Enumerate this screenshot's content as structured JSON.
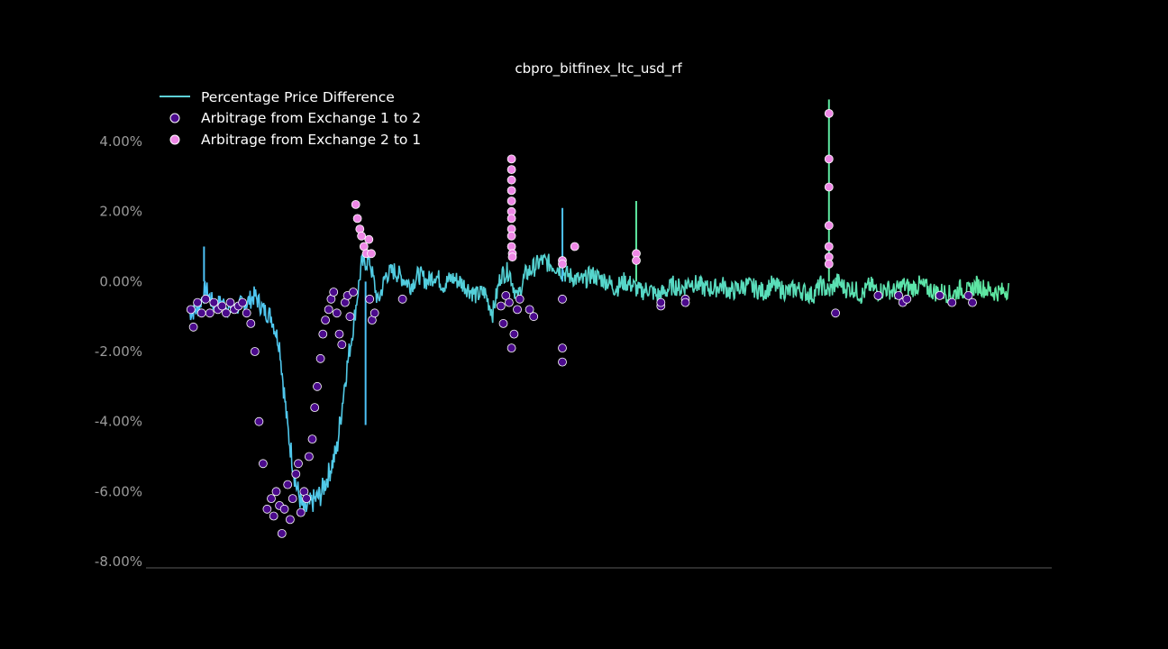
{
  "chart_data": {
    "type": "line",
    "title": "cbpro_bitfinex_ltc_usd_rf",
    "xlabel": "",
    "ylabel": "",
    "ylim": [
      -8.2,
      5.0
    ],
    "xlim": [
      0,
      100
    ],
    "y_ticks": [
      4,
      2,
      0,
      -2,
      -4,
      -6,
      -8
    ],
    "y_tick_labels": [
      "4.00%",
      "2.00%",
      "0.00%",
      "-2.00%",
      "-4.00%",
      "-6.00%",
      "-8.00%"
    ],
    "grid": false,
    "legend_position": "top-left",
    "legend": [
      {
        "label": "Percentage Price Difference",
        "kind": "line"
      },
      {
        "label": "Arbitrage from Exchange 1 to 2",
        "kind": "marker"
      },
      {
        "label": "Arbitrage from Exchange 2 to 1",
        "kind": "marker"
      }
    ],
    "line_series": {
      "name": "Percentage Price Difference",
      "color_start": "#4ec3f7",
      "color_end": "#5ee8a0",
      "x": [
        0,
        1,
        2,
        3,
        4,
        5,
        6,
        7,
        8,
        9,
        10,
        11,
        12,
        13,
        14,
        15,
        16,
        17,
        18,
        19,
        20,
        21,
        22,
        23,
        24,
        25,
        26,
        27,
        28,
        29,
        30,
        31,
        32,
        33,
        34,
        35,
        36,
        37,
        38,
        39,
        40,
        41,
        42,
        43,
        44,
        45,
        46,
        47,
        48,
        49,
        50,
        51,
        52,
        53,
        54,
        55,
        56,
        57,
        58,
        59,
        60,
        61,
        62,
        63,
        64,
        65,
        66,
        67,
        68,
        69,
        70,
        71,
        72,
        73,
        74,
        75,
        76,
        77,
        78,
        79,
        80,
        81,
        82,
        83,
        84,
        85,
        86,
        87,
        88,
        89,
        90,
        91,
        92,
        93,
        94,
        95,
        96,
        97,
        98,
        99,
        100
      ],
      "y": [
        -0.9,
        -0.8,
        -0.2,
        -0.7,
        -0.6,
        -0.8,
        -0.7,
        -0.6,
        -0.4,
        -0.8,
        -1.0,
        -1.8,
        -4.2,
        -5.8,
        -6.6,
        -6.3,
        -6.1,
        -5.5,
        -4.8,
        -2.8,
        -1.3,
        0.5,
        0.6,
        -0.6,
        0.2,
        0.3,
        0.1,
        -0.1,
        0.2,
        0.0,
        0.2,
        -0.1,
        0.1,
        0.0,
        -0.2,
        -0.4,
        -0.3,
        -0.9,
        0.2,
        0.3,
        -0.5,
        0.2,
        0.4,
        0.6,
        0.5,
        0.4,
        0.2,
        0.1,
        0.0,
        0.2,
        0.1,
        0.0,
        -0.2,
        0.0,
        -0.1,
        -0.3,
        -0.2,
        -0.4,
        -0.3,
        -0.1,
        -0.2,
        0.0,
        -0.1,
        -0.2,
        -0.2,
        -0.1,
        -0.3,
        -0.2,
        -0.1,
        -0.2,
        -0.3,
        -0.1,
        -0.2,
        -0.3,
        -0.2,
        -0.3,
        -0.4,
        -0.1,
        -0.3,
        0.0,
        -0.2,
        -0.2,
        -0.4,
        -0.1,
        -0.3,
        -0.2,
        -0.3,
        -0.1,
        -0.2,
        -0.1,
        -0.2,
        -0.3,
        -0.3,
        -0.4,
        -0.2,
        -0.3,
        -0.1,
        -0.2,
        -0.3,
        -0.3,
        -0.2
      ],
      "spikes": [
        {
          "x": 1.8,
          "y": 1.0
        },
        {
          "x": 21.5,
          "y": -4.1
        },
        {
          "x": 45.5,
          "y": 2.1
        },
        {
          "x": 54.5,
          "y": 2.3
        },
        {
          "x": 78.0,
          "y": 5.2
        }
      ]
    },
    "scatter_series": [
      {
        "name": "Arbitrage from Exchange 1 to 2",
        "color": "#4b0a8c",
        "x": [
          0.2,
          0.5,
          1,
          1.5,
          2,
          2.5,
          3,
          3.5,
          4,
          4.5,
          5,
          5.5,
          6,
          6.5,
          7,
          7.5,
          8,
          8.5,
          9,
          9.5,
          10,
          10.3,
          10.6,
          11,
          11.3,
          11.6,
          12,
          12.3,
          12.6,
          13,
          13.3,
          13.6,
          14,
          14.3,
          14.6,
          15,
          15.3,
          15.6,
          16,
          16.3,
          16.6,
          17,
          17.3,
          17.6,
          18,
          18.3,
          18.6,
          19,
          19.3,
          19.6,
          20,
          22,
          22.3,
          22.6,
          26,
          38,
          38.3,
          38.6,
          39,
          39.3,
          39.6,
          40,
          40.3,
          41.5,
          42,
          45.5,
          45.5,
          45.5,
          57.5,
          57.5,
          60.5,
          60.5,
          78.8,
          84,
          86.5,
          87,
          87.5,
          91.5,
          93,
          95,
          95.5
        ],
        "y": [
          -0.8,
          -1.3,
          -0.6,
          -0.9,
          -0.5,
          -0.9,
          -0.6,
          -0.8,
          -0.7,
          -0.9,
          -0.6,
          -0.8,
          -0.7,
          -0.6,
          -0.9,
          -1.2,
          -2.0,
          -4.0,
          -5.2,
          -6.5,
          -6.2,
          -6.7,
          -6.0,
          -6.4,
          -7.2,
          -6.5,
          -5.8,
          -6.8,
          -6.2,
          -5.5,
          -5.2,
          -6.6,
          -6.0,
          -6.2,
          -5.0,
          -4.5,
          -3.6,
          -3.0,
          -2.2,
          -1.5,
          -1.1,
          -0.8,
          -0.5,
          -0.3,
          -0.9,
          -1.5,
          -1.8,
          -0.6,
          -0.4,
          -1.0,
          -0.3,
          -0.5,
          -1.1,
          -0.9,
          -0.5,
          -0.7,
          -1.2,
          -0.4,
          -0.6,
          -1.9,
          -1.5,
          -0.8,
          -0.5,
          -0.8,
          -1.0,
          -0.5,
          -1.9,
          -2.3,
          -0.7,
          -0.6,
          -0.5,
          -0.6,
          -0.9,
          -0.4,
          -0.4,
          -0.6,
          -0.5,
          -0.4,
          -0.6,
          -0.4,
          -0.6
        ]
      },
      {
        "name": "Arbitrage from Exchange 2 to 1",
        "color": "#ee88e6",
        "x": [
          20.3,
          20.5,
          20.8,
          21,
          21.3,
          21.6,
          21.9,
          22.2,
          39.3,
          39.3,
          39.3,
          39.3,
          39.3,
          39.3,
          39.3,
          39.3,
          39.3,
          39.3,
          39.4,
          39.4,
          45.5,
          45.5,
          47,
          54.5,
          54.5,
          78,
          78,
          78,
          78,
          78,
          78,
          78
        ],
        "y": [
          2.2,
          1.8,
          1.5,
          1.3,
          1.0,
          0.8,
          1.2,
          0.8,
          3.5,
          3.2,
          2.9,
          2.6,
          2.3,
          2.0,
          1.8,
          1.5,
          1.3,
          1.0,
          0.8,
          0.7,
          0.6,
          0.5,
          1.0,
          0.8,
          0.6,
          4.8,
          3.5,
          2.7,
          1.6,
          1.0,
          0.7,
          0.5
        ]
      }
    ]
  }
}
